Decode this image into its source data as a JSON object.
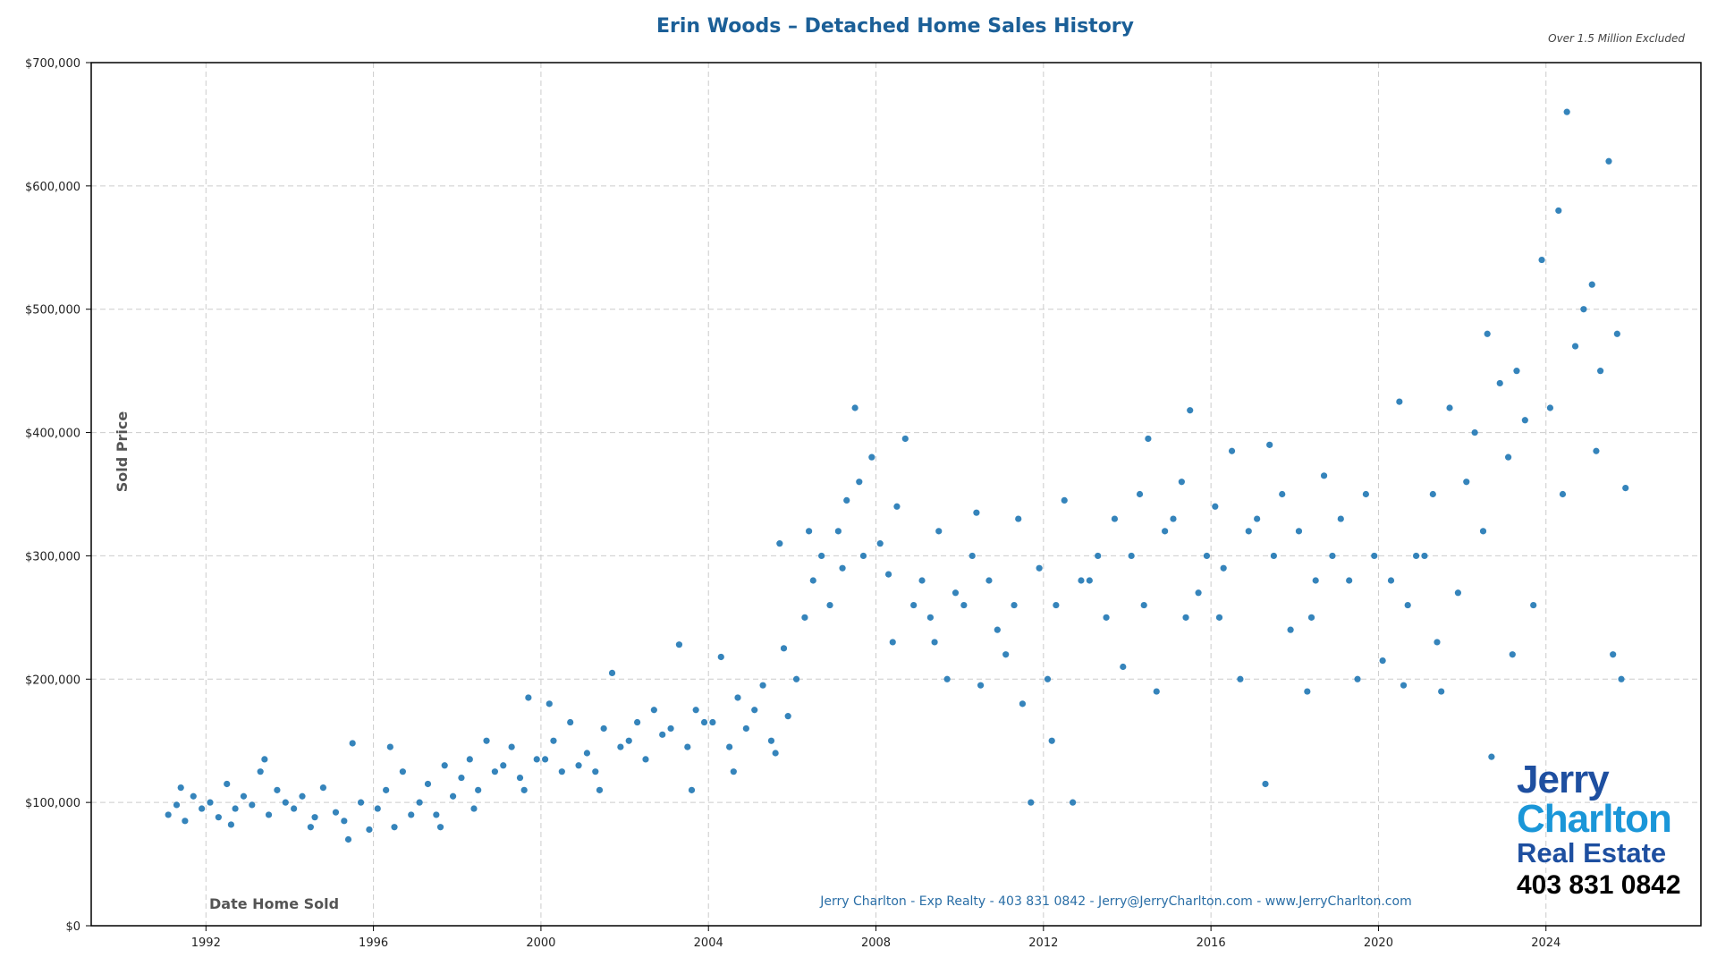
{
  "chart_data": {
    "type": "scatter",
    "title": "Erin Woods – Detached Home Sales History",
    "subtitle": "Over 1.5 Million Excluded",
    "xlabel": "Date Home Sold",
    "ylabel": "Sold Price",
    "xlim": [
      1989.26,
      2027.7
    ],
    "ylim": [
      0,
      700000
    ],
    "xticks": [
      1992,
      1996,
      2000,
      2004,
      2008,
      2012,
      2016,
      2020,
      2024
    ],
    "yticks": [
      0,
      100000,
      200000,
      300000,
      400000,
      500000,
      600000,
      700000
    ],
    "ytick_labels": [
      "$0",
      "$100,000",
      "$200,000",
      "$300,000",
      "$400,000",
      "$500,000",
      "$600,000",
      "$700,000"
    ],
    "grid": true,
    "marker_color": "#1f77b4",
    "footer": "Jerry Charlton - Exp Realty - 403 831 0842 - Jerry@JerryCharlton.com - www.JerryCharlton.com",
    "points": [
      [
        1991.1,
        90000
      ],
      [
        1991.3,
        98000
      ],
      [
        1991.5,
        85000
      ],
      [
        1991.7,
        105000
      ],
      [
        1991.9,
        95000
      ],
      [
        1991.4,
        112000
      ],
      [
        1992.1,
        100000
      ],
      [
        1992.3,
        88000
      ],
      [
        1992.5,
        115000
      ],
      [
        1992.7,
        95000
      ],
      [
        1992.9,
        105000
      ],
      [
        1992.6,
        82000
      ],
      [
        1993.1,
        98000
      ],
      [
        1993.3,
        125000
      ],
      [
        1993.5,
        90000
      ],
      [
        1993.7,
        110000
      ],
      [
        1993.9,
        100000
      ],
      [
        1993.4,
        135000
      ],
      [
        1994.1,
        95000
      ],
      [
        1994.3,
        105000
      ],
      [
        1994.6,
        88000
      ],
      [
        1994.8,
        112000
      ],
      [
        1994.5,
        80000
      ],
      [
        1995.1,
        92000
      ],
      [
        1995.3,
        85000
      ],
      [
        1995.5,
        148000
      ],
      [
        1995.7,
        100000
      ],
      [
        1995.9,
        78000
      ],
      [
        1995.4,
        70000
      ],
      [
        1996.1,
        95000
      ],
      [
        1996.3,
        110000
      ],
      [
        1996.5,
        80000
      ],
      [
        1996.7,
        125000
      ],
      [
        1996.9,
        90000
      ],
      [
        1996.4,
        145000
      ],
      [
        1997.1,
        100000
      ],
      [
        1997.3,
        115000
      ],
      [
        1997.5,
        90000
      ],
      [
        1997.7,
        130000
      ],
      [
        1997.9,
        105000
      ],
      [
        1997.6,
        80000
      ],
      [
        1998.1,
        120000
      ],
      [
        1998.3,
        135000
      ],
      [
        1998.5,
        110000
      ],
      [
        1998.7,
        150000
      ],
      [
        1998.9,
        125000
      ],
      [
        1998.4,
        95000
      ],
      [
        1999.1,
        130000
      ],
      [
        1999.3,
        145000
      ],
      [
        1999.5,
        120000
      ],
      [
        1999.7,
        185000
      ],
      [
        1999.9,
        135000
      ],
      [
        1999.6,
        110000
      ],
      [
        2000.1,
        135000
      ],
      [
        2000.3,
        150000
      ],
      [
        2000.5,
        125000
      ],
      [
        2000.7,
        165000
      ],
      [
        2000.9,
        130000
      ],
      [
        2000.2,
        180000
      ],
      [
        2001.1,
        140000
      ],
      [
        2001.3,
        125000
      ],
      [
        2001.5,
        160000
      ],
      [
        2001.7,
        205000
      ],
      [
        2001.9,
        145000
      ],
      [
        2001.4,
        110000
      ],
      [
        2002.1,
        150000
      ],
      [
        2002.3,
        165000
      ],
      [
        2002.5,
        135000
      ],
      [
        2002.7,
        175000
      ],
      [
        2002.9,
        155000
      ],
      [
        2003.1,
        160000
      ],
      [
        2003.3,
        228000
      ],
      [
        2003.5,
        145000
      ],
      [
        2003.7,
        175000
      ],
      [
        2003.9,
        165000
      ],
      [
        2003.6,
        110000
      ],
      [
        2004.1,
        165000
      ],
      [
        2004.3,
        218000
      ],
      [
        2004.5,
        145000
      ],
      [
        2004.7,
        185000
      ],
      [
        2004.9,
        160000
      ],
      [
        2004.6,
        125000
      ],
      [
        2005.1,
        175000
      ],
      [
        2005.3,
        195000
      ],
      [
        2005.5,
        150000
      ],
      [
        2005.7,
        310000
      ],
      [
        2005.9,
        170000
      ],
      [
        2005.6,
        140000
      ],
      [
        2005.8,
        225000
      ],
      [
        2006.1,
        200000
      ],
      [
        2006.3,
        250000
      ],
      [
        2006.5,
        280000
      ],
      [
        2006.7,
        300000
      ],
      [
        2006.9,
        260000
      ],
      [
        2006.4,
        320000
      ],
      [
        2007.1,
        320000
      ],
      [
        2007.3,
        345000
      ],
      [
        2007.5,
        420000
      ],
      [
        2007.7,
        300000
      ],
      [
        2007.9,
        380000
      ],
      [
        2007.2,
        290000
      ],
      [
        2007.6,
        360000
      ],
      [
        2008.1,
        310000
      ],
      [
        2008.3,
        285000
      ],
      [
        2008.5,
        340000
      ],
      [
        2008.7,
        395000
      ],
      [
        2008.9,
        260000
      ],
      [
        2008.4,
        230000
      ],
      [
        2009.1,
        280000
      ],
      [
        2009.3,
        250000
      ],
      [
        2009.5,
        320000
      ],
      [
        2009.7,
        200000
      ],
      [
        2009.9,
        270000
      ],
      [
        2009.4,
        230000
      ],
      [
        2010.1,
        260000
      ],
      [
        2010.3,
        300000
      ],
      [
        2010.5,
        195000
      ],
      [
        2010.7,
        280000
      ],
      [
        2010.9,
        240000
      ],
      [
        2010.4,
        335000
      ],
      [
        2011.1,
        220000
      ],
      [
        2011.3,
        260000
      ],
      [
        2011.5,
        180000
      ],
      [
        2011.7,
        100000
      ],
      [
        2011.9,
        290000
      ],
      [
        2011.4,
        330000
      ],
      [
        2012.1,
        200000
      ],
      [
        2012.3,
        260000
      ],
      [
        2012.5,
        345000
      ],
      [
        2012.7,
        100000
      ],
      [
        2012.9,
        280000
      ],
      [
        2012.2,
        150000
      ],
      [
        2013.1,
        280000
      ],
      [
        2013.3,
        300000
      ],
      [
        2013.5,
        250000
      ],
      [
        2013.7,
        330000
      ],
      [
        2013.9,
        210000
      ],
      [
        2014.1,
        300000
      ],
      [
        2014.3,
        350000
      ],
      [
        2014.5,
        395000
      ],
      [
        2014.7,
        190000
      ],
      [
        2014.9,
        320000
      ],
      [
        2014.4,
        260000
      ],
      [
        2015.1,
        330000
      ],
      [
        2015.3,
        360000
      ],
      [
        2015.5,
        418000
      ],
      [
        2015.7,
        270000
      ],
      [
        2015.9,
        300000
      ],
      [
        2015.4,
        250000
      ],
      [
        2016.1,
        340000
      ],
      [
        2016.3,
        290000
      ],
      [
        2016.5,
        385000
      ],
      [
        2016.7,
        200000
      ],
      [
        2016.9,
        320000
      ],
      [
        2016.2,
        250000
      ],
      [
        2017.1,
        330000
      ],
      [
        2017.3,
        115000
      ],
      [
        2017.5,
        300000
      ],
      [
        2017.7,
        350000
      ],
      [
        2017.9,
        240000
      ],
      [
        2017.4,
        390000
      ],
      [
        2018.1,
        320000
      ],
      [
        2018.3,
        190000
      ],
      [
        2018.5,
        280000
      ],
      [
        2018.7,
        365000
      ],
      [
        2018.9,
        300000
      ],
      [
        2018.4,
        250000
      ],
      [
        2019.1,
        330000
      ],
      [
        2019.3,
        280000
      ],
      [
        2019.5,
        200000
      ],
      [
        2019.7,
        350000
      ],
      [
        2019.9,
        300000
      ],
      [
        2020.1,
        215000
      ],
      [
        2020.3,
        280000
      ],
      [
        2020.5,
        425000
      ],
      [
        2020.7,
        260000
      ],
      [
        2020.9,
        300000
      ],
      [
        2020.6,
        195000
      ],
      [
        2021.1,
        300000
      ],
      [
        2021.3,
        350000
      ],
      [
        2021.5,
        190000
      ],
      [
        2021.7,
        420000
      ],
      [
        2021.9,
        270000
      ],
      [
        2021.4,
        230000
      ],
      [
        2022.1,
        360000
      ],
      [
        2022.3,
        400000
      ],
      [
        2022.5,
        320000
      ],
      [
        2022.7,
        137000
      ],
      [
        2022.9,
        440000
      ],
      [
        2022.6,
        480000
      ],
      [
        2023.1,
        380000
      ],
      [
        2023.3,
        450000
      ],
      [
        2023.5,
        410000
      ],
      [
        2023.7,
        260000
      ],
      [
        2023.9,
        540000
      ],
      [
        2023.2,
        220000
      ],
      [
        2024.1,
        420000
      ],
      [
        2024.3,
        580000
      ],
      [
        2024.5,
        660000
      ],
      [
        2024.7,
        470000
      ],
      [
        2024.9,
        500000
      ],
      [
        2024.4,
        350000
      ],
      [
        2025.1,
        520000
      ],
      [
        2025.3,
        450000
      ],
      [
        2025.5,
        620000
      ],
      [
        2025.7,
        480000
      ],
      [
        2025.9,
        355000
      ],
      [
        2025.6,
        220000
      ],
      [
        2025.8,
        200000
      ],
      [
        2025.2,
        385000
      ]
    ]
  },
  "logo": {
    "line1": "Jerry",
    "line2": "Charlton",
    "line3": "Real Estate",
    "phone": "403 831 0842"
  }
}
